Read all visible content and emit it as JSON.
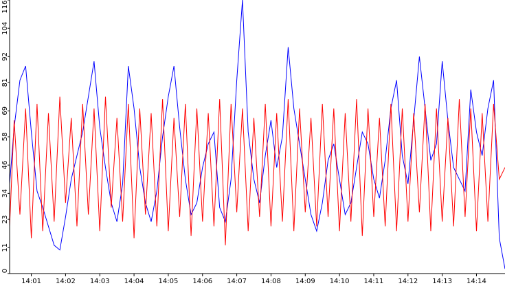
{
  "chart_data": {
    "type": "line",
    "title": "",
    "xlabel": "",
    "ylabel": "",
    "grid": false,
    "legend": "none",
    "xlim": [
      "14:00:22",
      "14:14:50"
    ],
    "ylim": [
      0,
      116
    ],
    "y_ticks": [
      "0",
      "11",
      "23",
      "34",
      "46",
      "58",
      "69",
      "81",
      "92",
      "104",
      "116"
    ],
    "x_ticks": [
      "14:01",
      "14:02",
      "14:03",
      "14:04",
      "14:05",
      "14:06",
      "14:07",
      "14:08",
      "14:09",
      "14:10",
      "14:11",
      "14:12",
      "14:13",
      "14:14"
    ],
    "series": [
      {
        "color": "#0000ff",
        "x": [
          "14:00:22",
          "14:00:30",
          "14:00:40",
          "14:00:50",
          "14:01:00",
          "14:01:10",
          "14:01:20",
          "14:01:30",
          "14:01:40",
          "14:01:50",
          "14:02:00",
          "14:02:10",
          "14:02:20",
          "14:02:30",
          "14:02:40",
          "14:02:50",
          "14:03:00",
          "14:03:10",
          "14:03:20",
          "14:03:30",
          "14:03:40",
          "14:03:50",
          "14:04:00",
          "14:04:10",
          "14:04:20",
          "14:04:30",
          "14:04:40",
          "14:04:50",
          "14:05:00",
          "14:05:10",
          "14:05:20",
          "14:05:30",
          "14:05:40",
          "14:05:50",
          "14:06:00",
          "14:06:10",
          "14:06:20",
          "14:06:30",
          "14:06:40",
          "14:06:50",
          "14:07:00",
          "14:07:10",
          "14:07:20",
          "14:07:30",
          "14:07:40",
          "14:07:50",
          "14:08:00",
          "14:08:10",
          "14:08:20",
          "14:08:30",
          "14:08:40",
          "14:08:50",
          "14:09:00",
          "14:09:10",
          "14:09:20",
          "14:09:30",
          "14:09:40",
          "14:09:50",
          "14:10:00",
          "14:10:10",
          "14:10:20",
          "14:10:30",
          "14:10:40",
          "14:10:50",
          "14:11:00",
          "14:11:10",
          "14:11:20",
          "14:11:30",
          "14:11:40",
          "14:11:50",
          "14:12:00",
          "14:12:10",
          "14:12:20",
          "14:12:30",
          "14:12:40",
          "14:12:50",
          "14:13:00",
          "14:13:10",
          "14:13:20",
          "14:13:30",
          "14:13:40",
          "14:13:50",
          "14:14:00",
          "14:14:10",
          "14:14:20",
          "14:14:30",
          "14:14:40",
          "14:14:50"
        ],
        "values": [
          38,
          62,
          82,
          88,
          60,
          35,
          28,
          20,
          12,
          10,
          24,
          40,
          50,
          60,
          75,
          90,
          62,
          45,
          30,
          22,
          38,
          88,
          70,
          45,
          30,
          22,
          35,
          58,
          75,
          88,
          62,
          40,
          25,
          30,
          45,
          55,
          60,
          28,
          22,
          40,
          82,
          116,
          60,
          40,
          30,
          50,
          65,
          45,
          58,
          96,
          70,
          55,
          40,
          25,
          18,
          30,
          48,
          55,
          40,
          25,
          30,
          45,
          60,
          55,
          40,
          32,
          48,
          70,
          82,
          50,
          38,
          65,
          92,
          70,
          48,
          55,
          90,
          65,
          45,
          40,
          35,
          78,
          60,
          50,
          70,
          82,
          15,
          2
        ]
      },
      {
        "color": "#ff0000",
        "x": [
          "14:00:22",
          "14:00:30",
          "14:00:40",
          "14:00:50",
          "14:01:00",
          "14:01:10",
          "14:01:20",
          "14:01:30",
          "14:01:40",
          "14:01:50",
          "14:02:00",
          "14:02:10",
          "14:02:20",
          "14:02:30",
          "14:02:40",
          "14:02:50",
          "14:03:00",
          "14:03:10",
          "14:03:20",
          "14:03:30",
          "14:03:40",
          "14:03:50",
          "14:04:00",
          "14:04:10",
          "14:04:20",
          "14:04:30",
          "14:04:40",
          "14:04:50",
          "14:05:00",
          "14:05:10",
          "14:05:20",
          "14:05:30",
          "14:05:40",
          "14:05:50",
          "14:06:00",
          "14:06:10",
          "14:06:20",
          "14:06:30",
          "14:06:40",
          "14:06:50",
          "14:07:00",
          "14:07:10",
          "14:07:20",
          "14:07:30",
          "14:07:40",
          "14:07:50",
          "14:08:00",
          "14:08:10",
          "14:08:20",
          "14:08:30",
          "14:08:40",
          "14:08:50",
          "14:09:00",
          "14:09:10",
          "14:09:20",
          "14:09:30",
          "14:09:40",
          "14:09:50",
          "14:10:00",
          "14:10:10",
          "14:10:20",
          "14:10:30",
          "14:10:40",
          "14:10:50",
          "14:11:00",
          "14:11:10",
          "14:11:20",
          "14:11:30",
          "14:11:40",
          "14:11:50",
          "14:12:00",
          "14:12:10",
          "14:12:20",
          "14:12:30",
          "14:12:40",
          "14:12:50",
          "14:13:00",
          "14:13:10",
          "14:13:20",
          "14:13:30",
          "14:13:40",
          "14:13:50",
          "14:14:00",
          "14:14:10",
          "14:14:20",
          "14:14:30",
          "14:14:40",
          "14:14:50"
        ],
        "values": [
          20,
          65,
          25,
          70,
          15,
          72,
          18,
          68,
          22,
          75,
          30,
          66,
          20,
          72,
          25,
          70,
          18,
          75,
          28,
          66,
          22,
          72,
          15,
          70,
          25,
          68,
          20,
          74,
          18,
          66,
          24,
          72,
          16,
          70,
          22,
          68,
          20,
          74,
          12,
          72,
          26,
          70,
          18,
          66,
          24,
          72,
          20,
          68,
          22,
          74,
          18,
          70,
          26,
          66,
          20,
          72,
          24,
          70,
          18,
          68,
          22,
          74,
          16,
          70,
          24,
          66,
          20,
          72,
          18,
          70,
          22,
          68,
          26,
          72,
          18,
          70,
          22,
          66,
          20,
          74,
          24,
          70,
          18,
          68,
          22,
          72,
          40,
          45
        ]
      }
    ]
  }
}
